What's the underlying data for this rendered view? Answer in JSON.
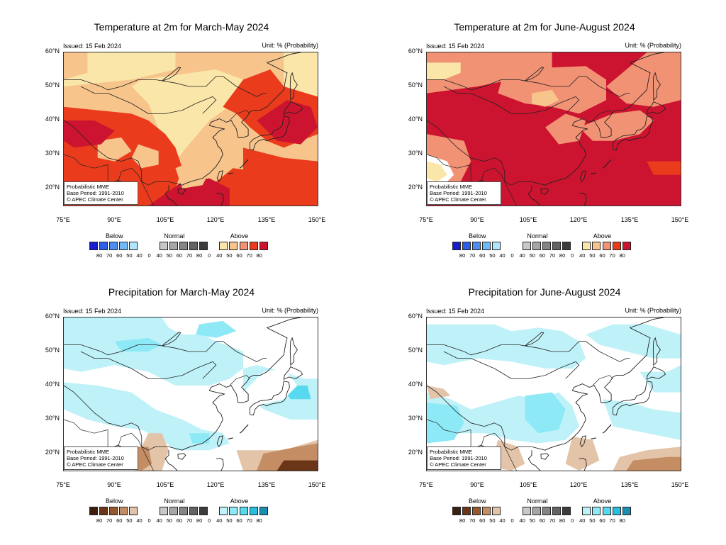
{
  "panels": [
    {
      "title": "Temperature at 2m for March-May 2024",
      "issued": "Issued: 15 Feb 2024",
      "unit": "Unit: % (Probability)",
      "kind": "temp_mam"
    },
    {
      "title": "Temperature at 2m for June-August 2024",
      "issued": "Issued: 15 Feb 2024",
      "unit": "Unit: % (Probability)",
      "kind": "temp_jja"
    },
    {
      "title": "Precipitation for March-May 2024",
      "issued": "Issued: 15 Feb 2024",
      "unit": "Unit: % (Probability)",
      "kind": "prec_mam"
    },
    {
      "title": "Precipitation for June-August 2024",
      "issued": "Issued: 15 Feb 2024",
      "unit": "Unit: % (Probability)",
      "kind": "prec_jja"
    }
  ],
  "info": {
    "line1": "Probabilistic MME",
    "line2": "Base Period: 1991-2010",
    "line3": "© APEC Climate Center"
  },
  "axes": {
    "lat_labels": [
      "60°N",
      "50°N",
      "40°N",
      "30°N",
      "20°N"
    ],
    "lon_labels": [
      "75°E",
      "90°E",
      "105°E",
      "120°E",
      "135°E",
      "150°E"
    ]
  },
  "legend": {
    "groups": [
      "Below",
      "Normal",
      "Above"
    ],
    "ticks": [
      "80",
      "70",
      "60",
      "50",
      "40",
      "0",
      "40",
      "50",
      "60",
      "70",
      "80",
      "0",
      "40",
      "50",
      "60",
      "70",
      "80"
    ],
    "temp_colors": {
      "below": [
        "#1a1ad0",
        "#2f5fe6",
        "#4d8ef0",
        "#6fb9f6",
        "#aee6fb"
      ],
      "normal": [
        "#ffffff",
        "#ffffff",
        "#c8c8c8",
        "#a6a6a6",
        "#858585",
        "#636363",
        "#3c3c3c"
      ],
      "above": [
        "#ffffff",
        "#fbe6a9",
        "#f7c48c",
        "#f29274",
        "#ea3c1c",
        "#cc1430"
      ]
    },
    "prec_colors": {
      "below": [
        "#3d1f0d",
        "#6b3617",
        "#99582c",
        "#c48d63",
        "#e3c4a8"
      ],
      "normal": [
        "#ffffff",
        "#ffffff",
        "#c8c8c8",
        "#a6a6a6",
        "#858585",
        "#636363",
        "#3c3c3c"
      ],
      "above": [
        "#ffffff",
        "#bff2f8",
        "#8ee9f6",
        "#59d9ef",
        "#29bde0",
        "#1a8fb0"
      ]
    }
  }
}
